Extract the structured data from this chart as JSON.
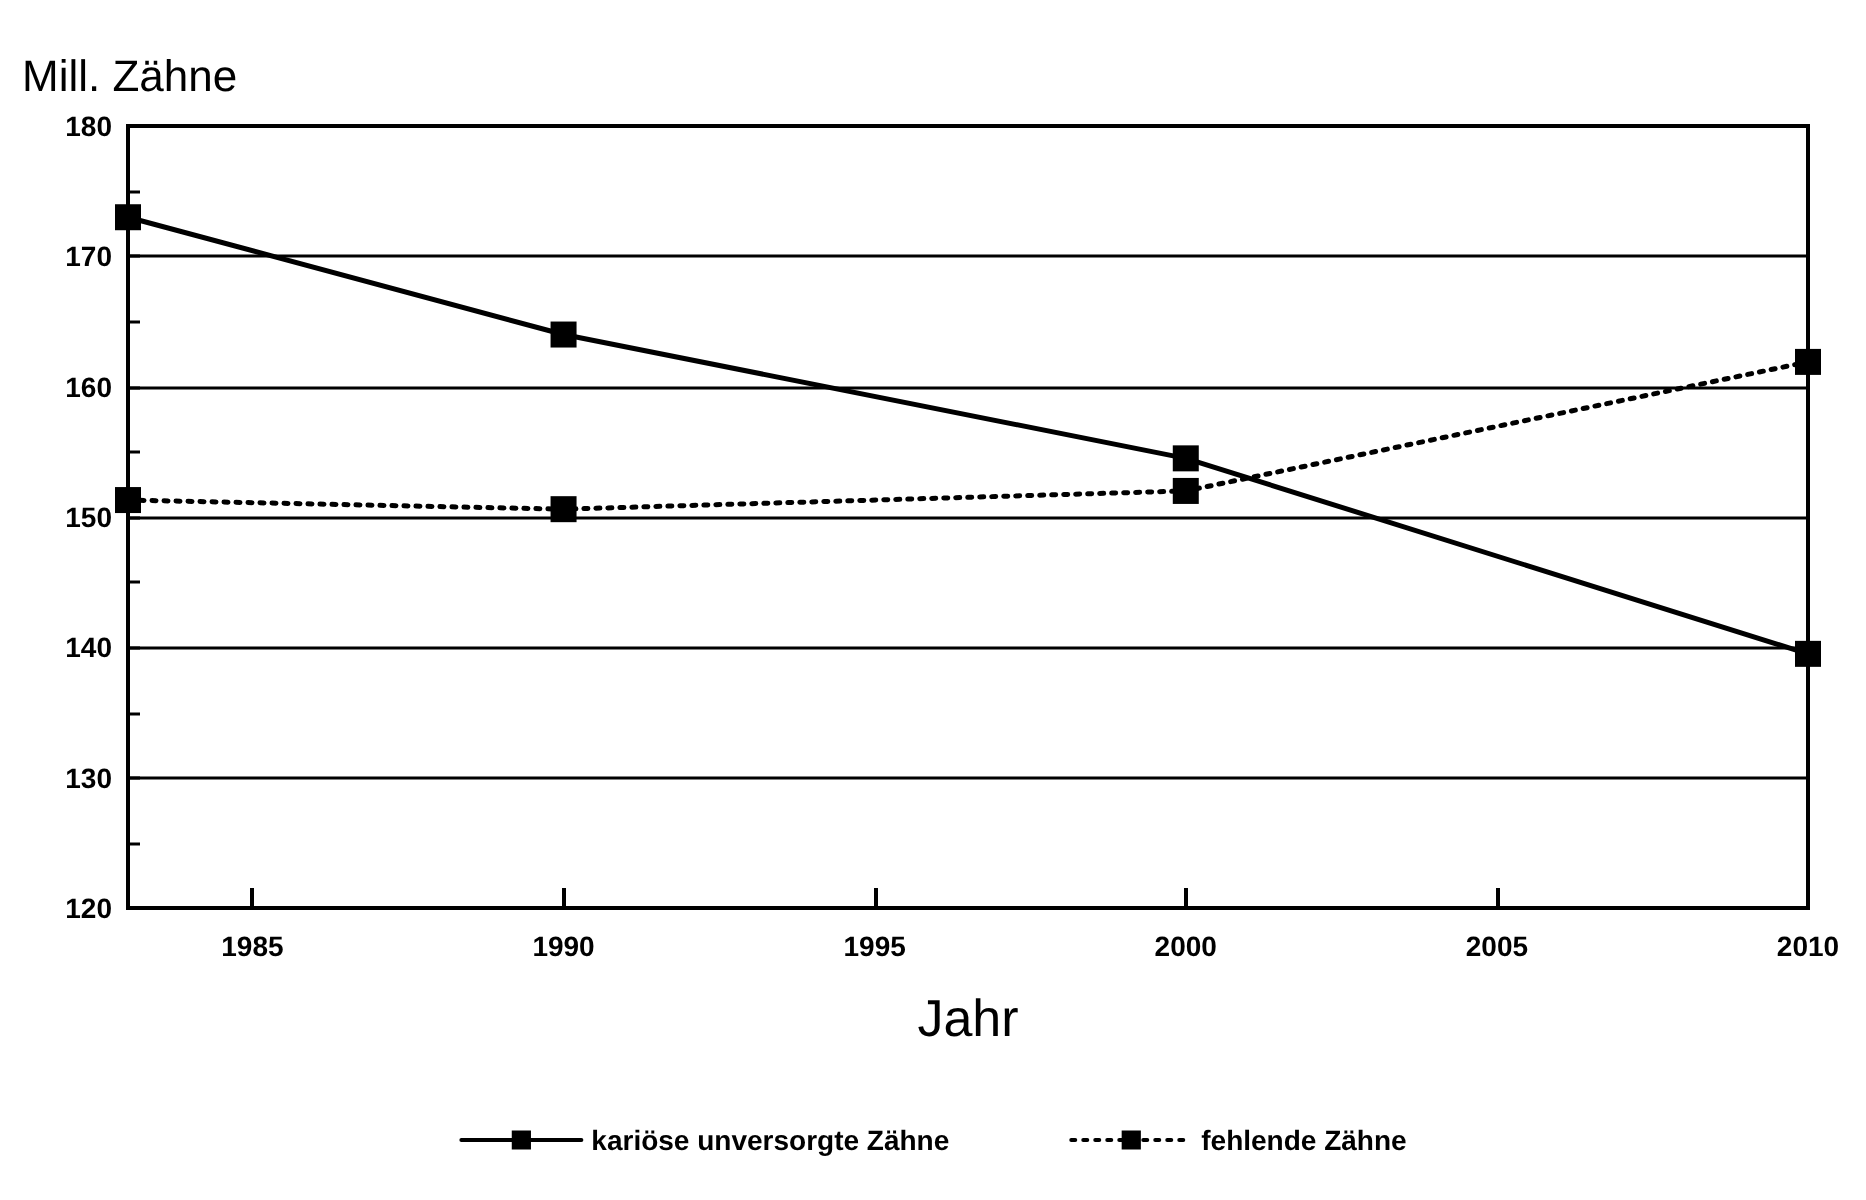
{
  "chart_data": {
    "type": "line",
    "ylabel": "Mill. Zähne",
    "xlabel": "Jahr",
    "x": [
      1983,
      1990,
      2000,
      2010
    ],
    "series": [
      {
        "name": "kariöse unversorgte Zähne",
        "color": "#000000",
        "line_style": "solid",
        "values": [
          173,
          164,
          154.5,
          139.5
        ]
      },
      {
        "name": "fehlende Zähne",
        "color": "#000000",
        "line_style": "dotted",
        "values": [
          151.3,
          150.6,
          152,
          161.9
        ]
      }
    ],
    "xlim": [
      1983,
      2010
    ],
    "xticks": [
      1985,
      1990,
      1995,
      2000,
      2005,
      2010
    ],
    "ylim": [
      120,
      180
    ],
    "yticks": [
      120,
      {
        "value": 125,
        "label": null
      },
      130,
      {
        "value": 135,
        "label": null
      },
      140,
      {
        "value": 145,
        "label": null
      },
      150,
      {
        "value": 155,
        "label": null
      },
      160,
      {
        "value": 165,
        "label": null
      },
      170,
      {
        "value": 175,
        "label": null
      },
      180
    ],
    "grid": "y",
    "legend": "bottom",
    "marker": "square"
  }
}
